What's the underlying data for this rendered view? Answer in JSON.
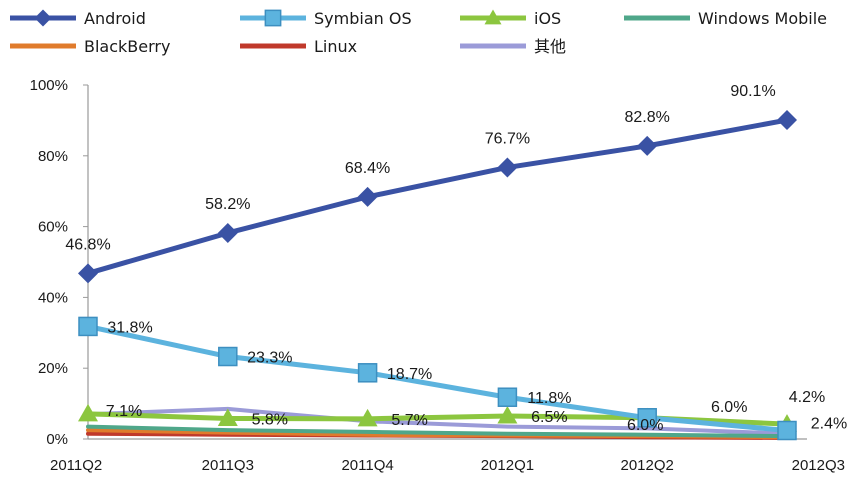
{
  "chart_data": {
    "type": "line",
    "title": "",
    "xlabel": "",
    "ylabel": "",
    "categories": [
      "2011Q2",
      "2011Q3",
      "2011Q4",
      "2012Q1",
      "2012Q2",
      "2012Q3"
    ],
    "ylim": [
      0,
      100
    ],
    "yticks": [
      0,
      20,
      40,
      60,
      80,
      100
    ],
    "ytick_labels": [
      "0%",
      "20%",
      "40%",
      "60%",
      "80%",
      "100%"
    ],
    "grid": false,
    "legend_position": "top",
    "series": [
      {
        "name": "Android",
        "color": "#3a52a4",
        "marker": "diamond",
        "values": [
          46.8,
          58.2,
          68.4,
          76.7,
          82.8,
          90.1
        ],
        "labels": [
          "46.8%",
          "58.2%",
          "68.4%",
          "76.7%",
          "82.8%",
          "90.1%"
        ]
      },
      {
        "name": "Symbian OS",
        "color": "#5cb3de",
        "marker": "square",
        "values": [
          31.8,
          23.3,
          18.7,
          11.8,
          6.0,
          2.4
        ],
        "labels": [
          "31.8%",
          "23.3%",
          "18.7%",
          "11.8%",
          "6.0%",
          "2.4%"
        ]
      },
      {
        "name": "iOS",
        "color": "#8cc63f",
        "marker": "triangle",
        "values": [
          7.1,
          5.8,
          5.7,
          6.5,
          6.0,
          4.2
        ],
        "labels": [
          "7.1%",
          "5.8%",
          "5.7%",
          "6.5%",
          "6.0%",
          "4.2%"
        ]
      },
      {
        "name": "Windows Mobile",
        "color": "#4fa78a",
        "marker": "none",
        "values": [
          3.5,
          2.5,
          2.0,
          1.5,
          1.2,
          0.8
        ]
      },
      {
        "name": "BlackBerry",
        "color": "#e07b2c",
        "marker": "none",
        "values": [
          2.5,
          1.8,
          1.2,
          1.0,
          0.8,
          0.5
        ]
      },
      {
        "name": "Linux",
        "color": "#c0392b",
        "marker": "none",
        "values": [
          1.5,
          1.2,
          1.0,
          0.8,
          0.5,
          0.3
        ]
      },
      {
        "name": "其他",
        "color": "#9b9bd8",
        "marker": "none",
        "values": [
          7.0,
          8.5,
          5.0,
          3.5,
          3.0,
          1.5
        ]
      }
    ]
  }
}
